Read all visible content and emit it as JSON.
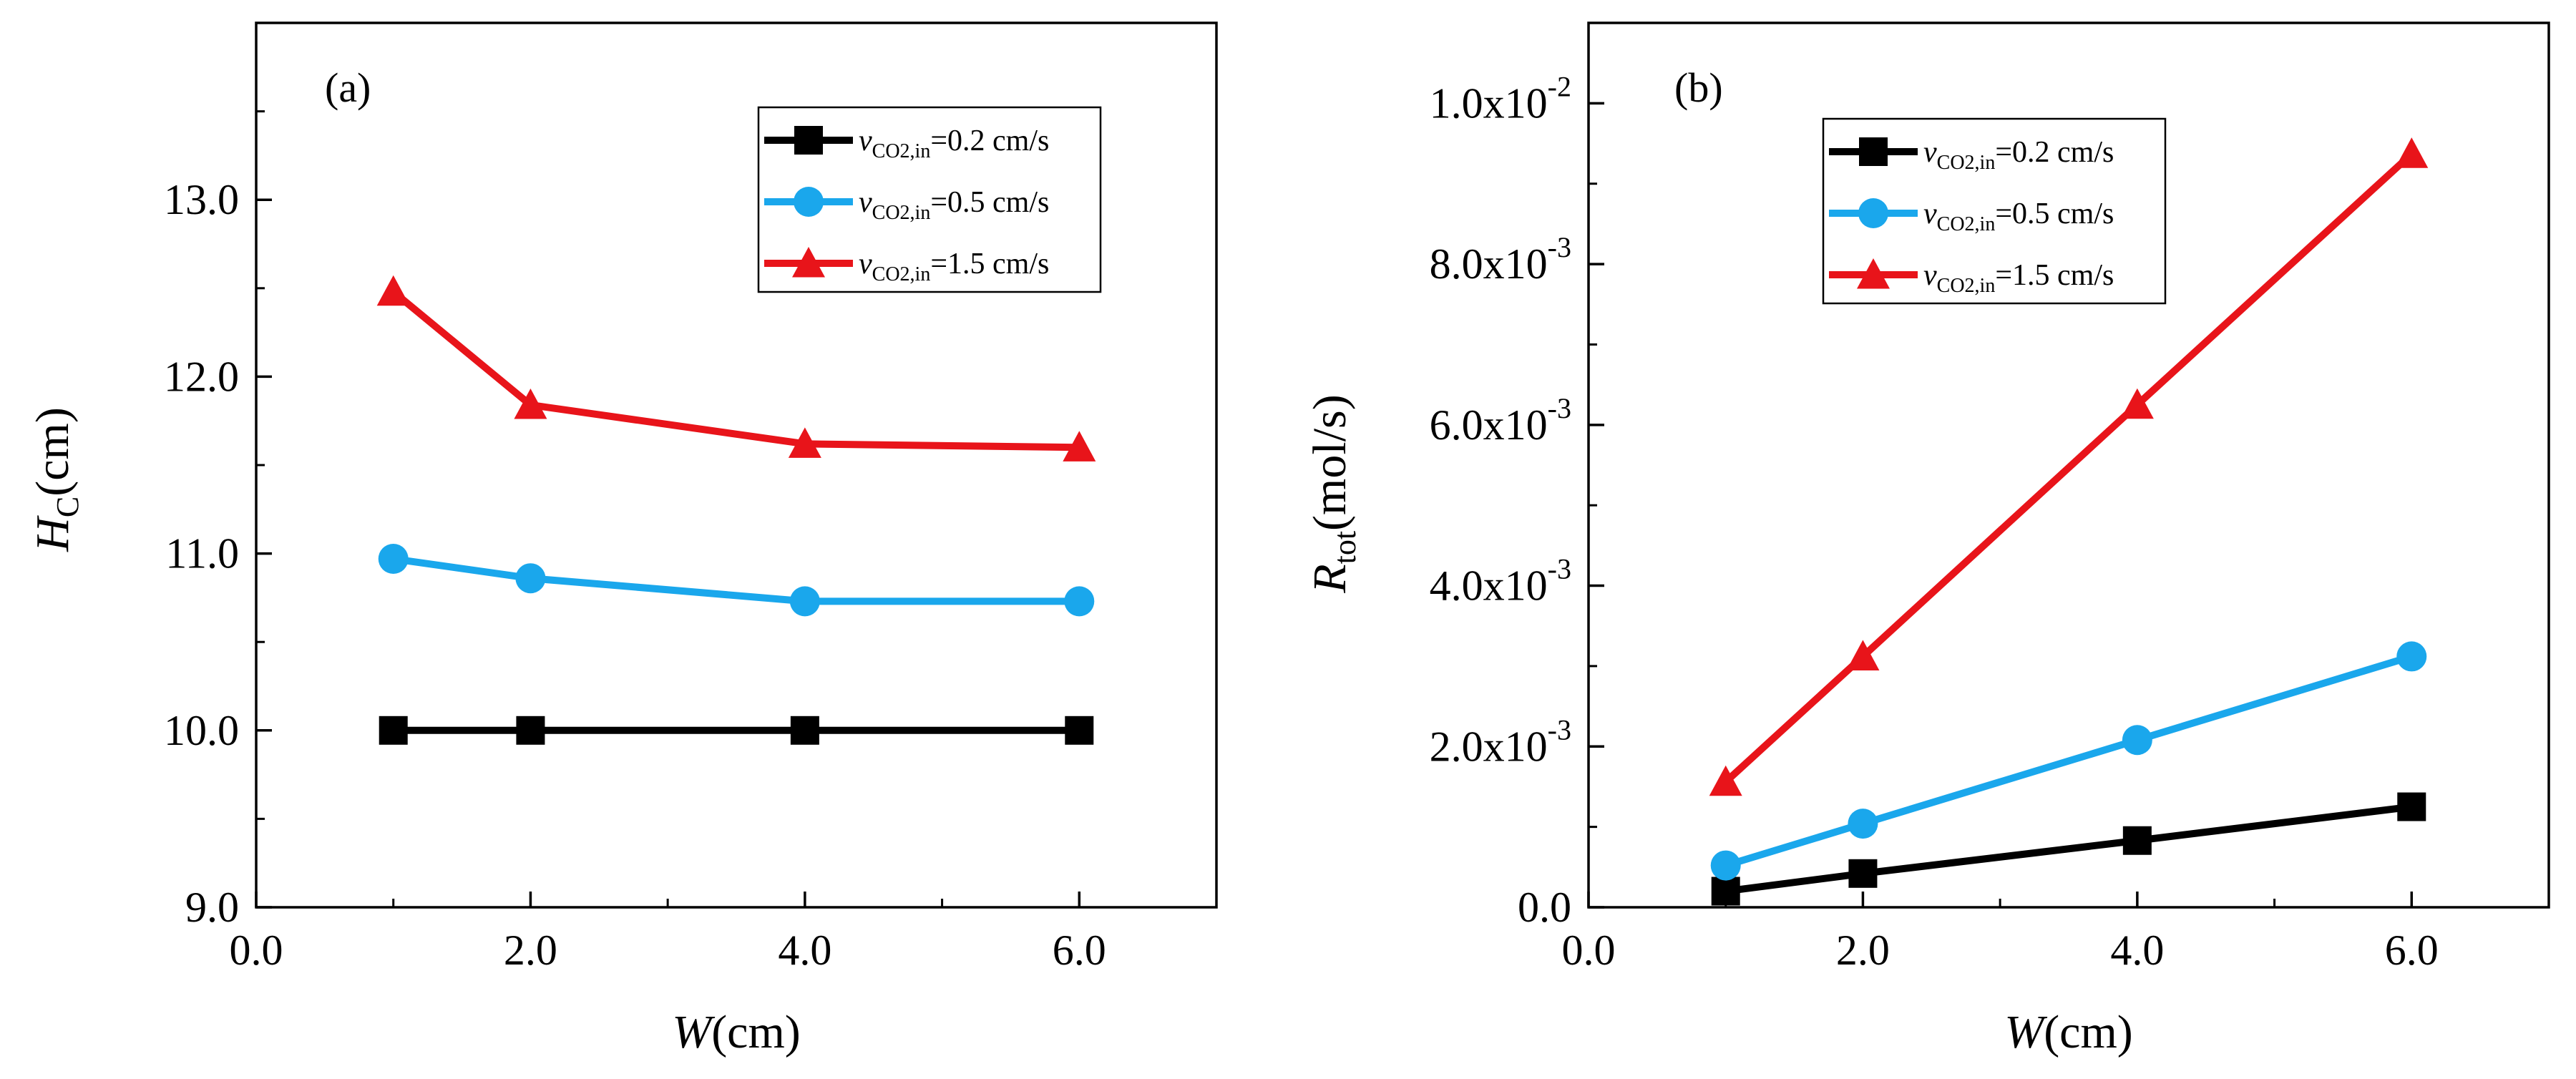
{
  "chart_data": [
    {
      "type": "line",
      "panel_label": "(a)",
      "xlabel_var": "W",
      "xlabel_unit": "(cm)",
      "ylabel_var": "H",
      "ylabel_sub": "C",
      "ylabel_unit": "(cm)",
      "xlim": [
        0,
        7
      ],
      "ylim": [
        9,
        14
      ],
      "xticks": [
        0,
        2,
        4,
        6
      ],
      "xtick_labels": [
        "0.0",
        "2.0",
        "4.0",
        "6.0"
      ],
      "yticks": [
        9,
        10,
        11,
        12,
        13
      ],
      "ytick_labels": [
        "9.0",
        "10.0",
        "11.0",
        "12.0",
        "13.0"
      ],
      "legend_position": "top-right",
      "x": [
        1,
        2,
        4,
        6
      ],
      "series": [
        {
          "name": "v CO2,in = 0.2 cm/s",
          "legend_var": "v",
          "legend_sub": "CO2,in",
          "legend_rest": "=0.2 cm/s",
          "color": "#000000",
          "marker": "square",
          "values": [
            10.0,
            10.0,
            10.0,
            10.0
          ]
        },
        {
          "name": "v CO2,in = 0.5 cm/s",
          "legend_var": "v",
          "legend_sub": "CO2,in",
          "legend_rest": "=0.5 cm/s",
          "color": "#1aa7ec",
          "marker": "circle",
          "values": [
            10.97,
            10.86,
            10.73,
            10.73
          ]
        },
        {
          "name": "v CO2,in = 1.5 cm/s",
          "legend_var": "v",
          "legend_sub": "CO2,in",
          "legend_rest": "=1.5 cm/s",
          "color": "#e8141a",
          "marker": "triangle",
          "values": [
            12.48,
            11.84,
            11.62,
            11.6
          ]
        }
      ]
    },
    {
      "type": "line",
      "panel_label": "(b)",
      "xlabel_var": "W",
      "xlabel_unit": "(cm)",
      "ylabel_var": "R",
      "ylabel_sub": "tot",
      "ylabel_unit": "(mol/s)",
      "xlim": [
        0,
        7
      ],
      "ylim": [
        0,
        0.011
      ],
      "xticks": [
        0,
        2,
        4,
        6
      ],
      "xtick_labels": [
        "0.0",
        "2.0",
        "4.0",
        "6.0"
      ],
      "yticks": [
        0,
        0.002,
        0.004,
        0.006,
        0.008,
        0.01
      ],
      "ytick_labels": [
        {
          "mant": "0.0",
          "exp": ""
        },
        {
          "mant": "2.0x10",
          "exp": "-3"
        },
        {
          "mant": "4.0x10",
          "exp": "-3"
        },
        {
          "mant": "6.0x10",
          "exp": "-3"
        },
        {
          "mant": "8.0x10",
          "exp": "-3"
        },
        {
          "mant": "1.0x10",
          "exp": "-2"
        }
      ],
      "legend_position": "top-left",
      "x": [
        1,
        2,
        4,
        6
      ],
      "series": [
        {
          "name": "v CO2,in = 0.2 cm/s",
          "legend_var": "v",
          "legend_sub": "CO2,in",
          "legend_rest": "=0.2 cm/s",
          "color": "#000000",
          "marker": "square",
          "values": [
            0.0002,
            0.00042,
            0.00083,
            0.00125
          ]
        },
        {
          "name": "v CO2,in = 0.5 cm/s",
          "legend_var": "v",
          "legend_sub": "CO2,in",
          "legend_rest": "=0.5 cm/s",
          "color": "#1aa7ec",
          "marker": "circle",
          "values": [
            0.00052,
            0.00104,
            0.00208,
            0.00312
          ]
        },
        {
          "name": "v CO2,in = 1.5 cm/s",
          "legend_var": "v",
          "legend_sub": "CO2,in",
          "legend_rest": "=1.5 cm/s",
          "color": "#e8141a",
          "marker": "triangle",
          "values": [
            0.00156,
            0.00312,
            0.00625,
            0.00937
          ]
        }
      ]
    }
  ]
}
